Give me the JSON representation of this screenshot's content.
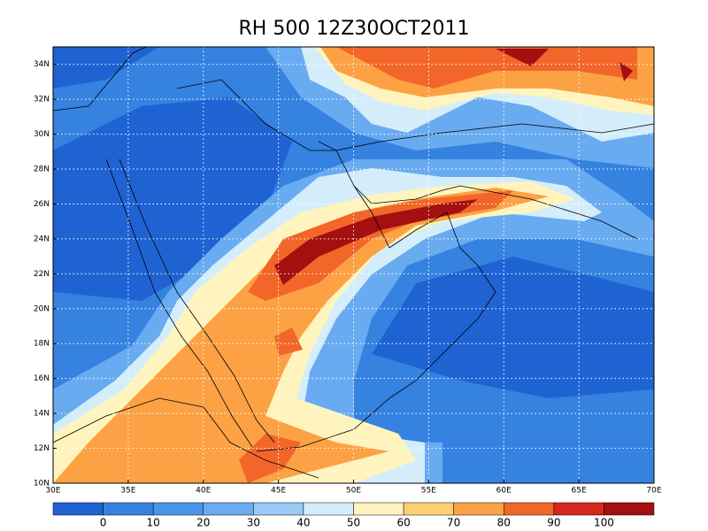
{
  "chart_data": {
    "type": "contour_map",
    "title": "RH 500 12Z30OCT2011",
    "xlim": [
      30,
      70
    ],
    "ylim": [
      10,
      35
    ],
    "xticks": [
      {
        "value": 30,
        "label": "30E"
      },
      {
        "value": 35,
        "label": "35E"
      },
      {
        "value": 40,
        "label": "40E"
      },
      {
        "value": 45,
        "label": "45E"
      },
      {
        "value": 50,
        "label": "50E"
      },
      {
        "value": 55,
        "label": "55E"
      },
      {
        "value": 60,
        "label": "60E"
      },
      {
        "value": 65,
        "label": "65E"
      },
      {
        "value": 70,
        "label": "70E"
      }
    ],
    "yticks": [
      {
        "value": 10,
        "label": "10N"
      },
      {
        "value": 12,
        "label": "12N"
      },
      {
        "value": 14,
        "label": "14N"
      },
      {
        "value": 16,
        "label": "16N"
      },
      {
        "value": 18,
        "label": "18N"
      },
      {
        "value": 20,
        "label": "20N"
      },
      {
        "value": 22,
        "label": "22N"
      },
      {
        "value": 24,
        "label": "24N"
      },
      {
        "value": 26,
        "label": "26N"
      },
      {
        "value": 28,
        "label": "28N"
      },
      {
        "value": 30,
        "label": "30N"
      },
      {
        "value": 32,
        "label": "32N"
      },
      {
        "value": 34,
        "label": "34N"
      }
    ],
    "grid": true,
    "colorbar": {
      "levels": [
        0,
        10,
        20,
        30,
        40,
        50,
        60,
        70,
        80,
        90,
        100
      ],
      "colors": [
        "#1f63d3",
        "#3582e0",
        "#4a95e8",
        "#69abf0",
        "#98cbf6",
        "#d4edfb",
        "#fff4bd",
        "#fdd173",
        "#fca245",
        "#f2662a",
        "#d7261d",
        "#a3100f"
      ]
    }
  }
}
